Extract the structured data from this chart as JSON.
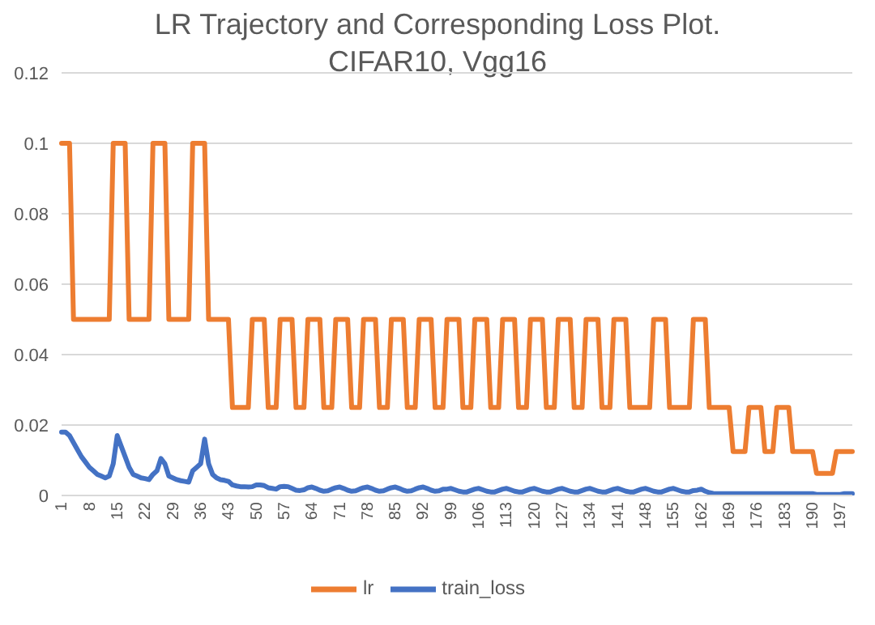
{
  "chart_data": {
    "type": "line",
    "title": "LR Trajectory and Corresponding Loss Plot. CIFAR10, Vgg16",
    "categories": [
      "1",
      null,
      null,
      null,
      null,
      null,
      null,
      "8",
      null,
      null,
      null,
      null,
      null,
      null,
      "15",
      null,
      null,
      null,
      null,
      null,
      null,
      "22",
      null,
      null,
      null,
      null,
      null,
      null,
      "29",
      null,
      null,
      null,
      null,
      null,
      null,
      "36",
      null,
      null,
      null,
      null,
      null,
      null,
      "43",
      null,
      null,
      null,
      null,
      null,
      null,
      "50",
      null,
      null,
      null,
      null,
      null,
      null,
      "57",
      null,
      null,
      null,
      null,
      null,
      null,
      "64",
      null,
      null,
      null,
      null,
      null,
      null,
      "71",
      null,
      null,
      null,
      null,
      null,
      null,
      "78",
      null,
      null,
      null,
      null,
      null,
      null,
      "85",
      null,
      null,
      null,
      null,
      null,
      null,
      "92",
      null,
      null,
      null,
      null,
      null,
      null,
      "99",
      null,
      null,
      null,
      null,
      null,
      null,
      "106",
      null,
      null,
      null,
      null,
      null,
      null,
      "113",
      null,
      null,
      null,
      null,
      null,
      null,
      "120",
      null,
      null,
      null,
      null,
      null,
      null,
      "127",
      null,
      null,
      null,
      null,
      null,
      null,
      "134",
      null,
      null,
      null,
      null,
      null,
      null,
      "141",
      null,
      null,
      null,
      null,
      null,
      null,
      "148",
      null,
      null,
      null,
      null,
      null,
      null,
      "155",
      null,
      null,
      null,
      null,
      null,
      null,
      "162",
      null,
      null,
      null,
      null,
      null,
      null,
      "169",
      null,
      null,
      null,
      null,
      null,
      null,
      "176",
      null,
      null,
      null,
      null,
      null,
      null,
      "183",
      null,
      null,
      null,
      null,
      null,
      null,
      "190",
      null,
      null,
      null,
      null,
      null,
      null,
      "197",
      null,
      null,
      null
    ],
    "series": [
      {
        "name": "train_loss",
        "color": "#4472c4",
        "values": [
          0.018,
          0.018,
          0.017,
          0.015,
          0.013,
          0.011,
          0.0095,
          0.008,
          0.007,
          0.006,
          0.0055,
          0.005,
          0.0055,
          0.009,
          0.017,
          0.014,
          0.011,
          0.008,
          0.006,
          0.0055,
          0.005,
          0.0048,
          0.0045,
          0.006,
          0.007,
          0.0105,
          0.009,
          0.0055,
          0.005,
          0.0045,
          0.0042,
          0.004,
          0.0038,
          0.007,
          0.008,
          0.009,
          0.016,
          0.009,
          0.006,
          0.005,
          0.0045,
          0.0043,
          0.004,
          0.003,
          0.0027,
          0.0025,
          0.0025,
          0.0024,
          0.0025,
          0.003,
          0.003,
          0.0028,
          0.0022,
          0.002,
          0.0018,
          0.0025,
          0.0026,
          0.0025,
          0.002,
          0.0015,
          0.0014,
          0.0016,
          0.0022,
          0.0024,
          0.002,
          0.0015,
          0.0012,
          0.0013,
          0.0018,
          0.0022,
          0.0024,
          0.002,
          0.0015,
          0.0012,
          0.0013,
          0.0018,
          0.0022,
          0.0024,
          0.002,
          0.0015,
          0.0012,
          0.0013,
          0.0018,
          0.0022,
          0.0024,
          0.002,
          0.0015,
          0.0012,
          0.0013,
          0.0018,
          0.0022,
          0.0024,
          0.002,
          0.0015,
          0.0012,
          0.0013,
          0.0018,
          0.0018,
          0.002,
          0.0016,
          0.0012,
          0.001,
          0.001,
          0.0014,
          0.0018,
          0.002,
          0.0016,
          0.0012,
          0.001,
          0.001,
          0.0014,
          0.0018,
          0.002,
          0.0016,
          0.0012,
          0.001,
          0.001,
          0.0014,
          0.0018,
          0.002,
          0.0016,
          0.0012,
          0.001,
          0.001,
          0.0014,
          0.0018,
          0.002,
          0.0016,
          0.0012,
          0.001,
          0.001,
          0.0014,
          0.0018,
          0.002,
          0.0016,
          0.0012,
          0.001,
          0.001,
          0.0014,
          0.0018,
          0.002,
          0.0016,
          0.0012,
          0.001,
          0.001,
          0.0014,
          0.0018,
          0.002,
          0.0016,
          0.0012,
          0.001,
          0.001,
          0.0014,
          0.0018,
          0.002,
          0.0016,
          0.0012,
          0.001,
          0.001,
          0.0014,
          0.0015,
          0.0018,
          0.0012,
          0.0008,
          0.0006,
          0.0005,
          0.0005,
          0.0005,
          0.0005,
          0.0005,
          0.0005,
          0.0005,
          0.0005,
          0.0005,
          0.0005,
          0.0005,
          0.0005,
          0.0005,
          0.0005,
          0.0005,
          0.0005,
          0.0005,
          0.0005,
          0.0005,
          0.0005,
          0.0005,
          0.0005,
          0.0005,
          0.0005,
          0.0005,
          0.0003,
          0.0003,
          0.0003,
          0.0003,
          0.0003,
          0.0003,
          0.0003,
          0.0005,
          0.0005,
          0.0005
        ]
      },
      {
        "name": "lr",
        "color": "#ed7d31",
        "values": [
          0.1,
          0.1,
          0.1,
          0.05,
          0.05,
          0.05,
          0.05,
          0.05,
          0.05,
          0.05,
          0.05,
          0.05,
          0.05,
          0.1,
          0.1,
          0.1,
          0.1,
          0.05,
          0.05,
          0.05,
          0.05,
          0.05,
          0.05,
          0.1,
          0.1,
          0.1,
          0.1,
          0.05,
          0.05,
          0.05,
          0.05,
          0.05,
          0.05,
          0.1,
          0.1,
          0.1,
          0.1,
          0.05,
          0.05,
          0.05,
          0.05,
          0.05,
          0.05,
          0.025,
          0.025,
          0.025,
          0.025,
          0.025,
          0.05,
          0.05,
          0.05,
          0.05,
          0.025,
          0.025,
          0.025,
          0.05,
          0.05,
          0.05,
          0.05,
          0.025,
          0.025,
          0.025,
          0.05,
          0.05,
          0.05,
          0.05,
          0.025,
          0.025,
          0.025,
          0.05,
          0.05,
          0.05,
          0.05,
          0.025,
          0.025,
          0.025,
          0.05,
          0.05,
          0.05,
          0.05,
          0.025,
          0.025,
          0.025,
          0.05,
          0.05,
          0.05,
          0.05,
          0.025,
          0.025,
          0.025,
          0.05,
          0.05,
          0.05,
          0.05,
          0.025,
          0.025,
          0.025,
          0.05,
          0.05,
          0.05,
          0.05,
          0.025,
          0.025,
          0.025,
          0.05,
          0.05,
          0.05,
          0.05,
          0.025,
          0.025,
          0.025,
          0.05,
          0.05,
          0.05,
          0.05,
          0.025,
          0.025,
          0.025,
          0.05,
          0.05,
          0.05,
          0.05,
          0.025,
          0.025,
          0.025,
          0.05,
          0.05,
          0.05,
          0.05,
          0.025,
          0.025,
          0.025,
          0.05,
          0.05,
          0.05,
          0.05,
          0.025,
          0.025,
          0.025,
          0.05,
          0.05,
          0.05,
          0.05,
          0.025,
          0.025,
          0.025,
          0.025,
          0.025,
          0.025,
          0.05,
          0.05,
          0.05,
          0.05,
          0.025,
          0.025,
          0.025,
          0.025,
          0.025,
          0.025,
          0.05,
          0.05,
          0.05,
          0.05,
          0.025,
          0.025,
          0.025,
          0.025,
          0.025,
          0.025,
          0.0125,
          0.0125,
          0.0125,
          0.0125,
          0.025,
          0.025,
          0.025,
          0.025,
          0.0125,
          0.0125,
          0.0125,
          0.025,
          0.025,
          0.025,
          0.025,
          0.0125,
          0.0125,
          0.0125,
          0.0125,
          0.0125,
          0.0125,
          0.00625,
          0.00625,
          0.00625,
          0.00625,
          0.00625,
          0.0125,
          0.0125,
          0.0125,
          0.0125,
          0.0125
        ]
      }
    ],
    "ylim": [
      0,
      0.12
    ],
    "yticks": [
      0,
      0.02,
      0.04,
      0.06,
      0.08,
      0.1,
      0.12
    ],
    "grid": "y",
    "legend": "bottom",
    "marker": "none",
    "line_style": "solid"
  }
}
